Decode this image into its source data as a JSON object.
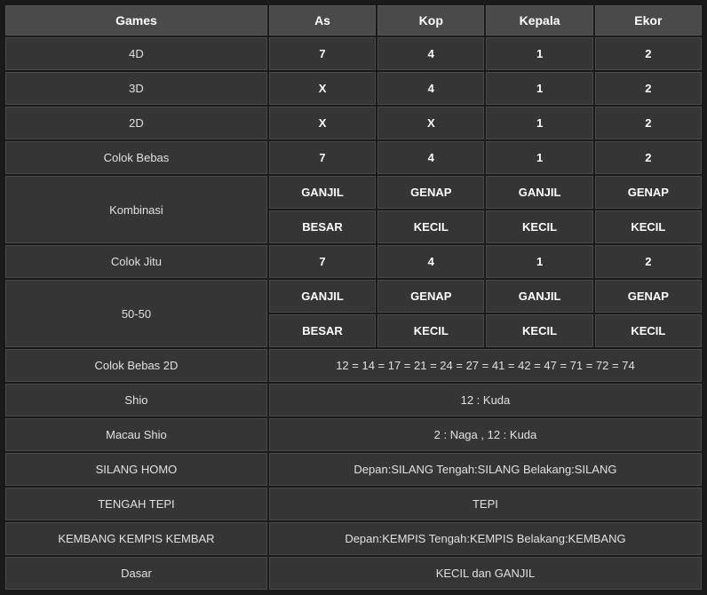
{
  "columns": {
    "games": "Games",
    "as": "As",
    "kop": "Kop",
    "kepala": "Kepala",
    "ekor": "Ekor"
  },
  "rows": {
    "r4d": {
      "game": "4D",
      "as": "7",
      "kop": "4",
      "kepala": "1",
      "ekor": "2"
    },
    "r3d": {
      "game": "3D",
      "as": "X",
      "kop": "4",
      "kepala": "1",
      "ekor": "2"
    },
    "r2d": {
      "game": "2D",
      "as": "X",
      "kop": "X",
      "kepala": "1",
      "ekor": "2"
    },
    "colok_bebas": {
      "game": "Colok Bebas",
      "as": "7",
      "kop": "4",
      "kepala": "1",
      "ekor": "2"
    },
    "kombinasi1": {
      "game": "Kombinasi",
      "as": "GANJIL",
      "kop": "GENAP",
      "kepala": "GANJIL",
      "ekor": "GENAP"
    },
    "kombinasi2": {
      "as": "BESAR",
      "kop": "KECIL",
      "kepala": "KECIL",
      "ekor": "KECIL"
    },
    "colok_jitu": {
      "game": "Colok Jitu",
      "as": "7",
      "kop": "4",
      "kepala": "1",
      "ekor": "2"
    },
    "r5050a": {
      "game": "50-50",
      "as": "GANJIL",
      "kop": "GENAP",
      "kepala": "GANJIL",
      "ekor": "GENAP"
    },
    "r5050b": {
      "as": "BESAR",
      "kop": "KECIL",
      "kepala": "KECIL",
      "ekor": "KECIL"
    },
    "colok_bebas_2d": {
      "game": "Colok Bebas 2D",
      "value": "12 = 14 = 17 = 21 = 24 = 27 = 41 = 42 = 47 = 71 = 72 = 74"
    },
    "shio": {
      "game": "Shio",
      "value": "12 : Kuda"
    },
    "macau_shio": {
      "game": "Macau Shio",
      "value": "2 : Naga , 12 : Kuda"
    },
    "silang_homo": {
      "game": "SILANG HOMO",
      "value": "Depan:SILANG Tengah:SILANG Belakang:SILANG"
    },
    "tengah_tepi": {
      "game": "TENGAH TEPI",
      "value": "TEPI"
    },
    "kembang": {
      "game": "KEMBANG KEMPIS KEMBAR",
      "value": "Depan:KEMPIS Tengah:KEMPIS Belakang:KEMBANG"
    },
    "dasar": {
      "game": "Dasar",
      "value": "KECIL dan GANJIL"
    }
  }
}
